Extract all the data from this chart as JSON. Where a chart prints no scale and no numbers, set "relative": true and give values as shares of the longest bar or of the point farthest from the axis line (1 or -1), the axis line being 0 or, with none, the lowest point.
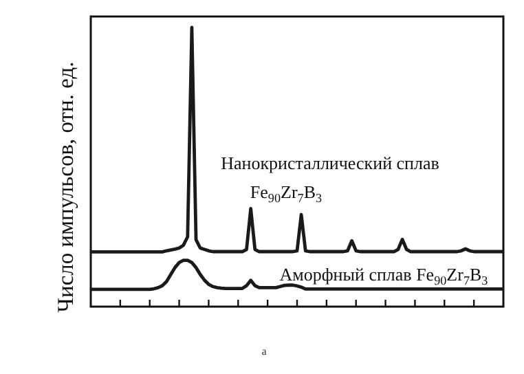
{
  "chart_data": {
    "type": "line",
    "relative": true,
    "ylabel": "Число импульсов, отн. ед.",
    "categories": [
      null,
      null,
      null,
      null,
      null,
      null,
      null,
      null,
      null,
      null,
      null,
      null,
      null,
      null,
      null,
      null,
      null,
      null,
      null,
      null,
      null,
      null,
      null,
      null,
      null,
      null,
      null,
      null,
      null,
      null,
      null,
      null,
      null,
      null,
      null,
      null,
      null,
      null,
      null,
      null,
      null,
      null,
      null,
      null,
      null,
      null,
      null,
      null,
      null,
      null,
      null,
      null,
      null,
      null,
      null,
      null,
      null,
      null,
      null,
      null,
      null,
      null,
      null,
      null,
      null,
      null,
      null,
      null,
      null,
      null,
      null,
      null,
      null,
      null,
      null,
      null,
      null,
      null,
      null,
      null,
      null,
      null,
      null,
      null,
      null,
      null,
      null,
      null,
      null,
      null,
      null,
      null,
      null,
      null,
      null,
      null,
      null,
      null,
      null
    ],
    "series": [
      {
        "name": "Нанокристаллический сплав Fe$_{90}$Zr$_{7}$B$_{3}$",
        "color": "#1a1a1a",
        "values": [
          0.196,
          0.196,
          0.196,
          0.196,
          0.196,
          0.196,
          0.196,
          0.196,
          0.196,
          0.196,
          0.196,
          0.196,
          0.196,
          0.196,
          0.196,
          0.196,
          0.196,
          0.196,
          0.2,
          0.203,
          0.206,
          0.21,
          0.22,
          0.25,
          1,
          0.24,
          0.21,
          0.205,
          0.2,
          0.197,
          0.197,
          0.197,
          0.197,
          0.197,
          0.197,
          0.197,
          0.197,
          0.205,
          0.351,
          0.205,
          0.197,
          0.197,
          0.197,
          0.197,
          0.197,
          0.197,
          0.197,
          0.197,
          0.197,
          0.2,
          0.33,
          0.2,
          0.197,
          0.197,
          0.197,
          0.197,
          0.197,
          0.197,
          0.197,
          0.197,
          0.197,
          0.2,
          0.236,
          0.2,
          0.197,
          0.197,
          0.197,
          0.197,
          0.197,
          0.197,
          0.197,
          0.197,
          0.197,
          0.205,
          0.241,
          0.205,
          0.197,
          0.197,
          0.197,
          0.197,
          0.197,
          0.197,
          0.197,
          0.197,
          0.197,
          0.197,
          0.197,
          0.197,
          0.2,
          0.207,
          0.2,
          0.197,
          0.197,
          0.197,
          0.197,
          0.197,
          0.197,
          0.197,
          0.197
        ]
      },
      {
        "name": "Аморфный сплав Fe$_{90}$Zr$_{7}$B$_{3}$",
        "color": "#1a1a1a",
        "values": [
          0.062,
          0.062,
          0.062,
          0.062,
          0.062,
          0.062,
          0.062,
          0.062,
          0.062,
          0.062,
          0.062,
          0.062,
          0.062,
          0.062,
          0.062,
          0.064,
          0.068,
          0.075,
          0.09,
          0.115,
          0.14,
          0.158,
          0.166,
          0.166,
          0.158,
          0.14,
          0.115,
          0.095,
          0.08,
          0.072,
          0.068,
          0.066,
          0.065,
          0.065,
          0.065,
          0.065,
          0.065,
          0.075,
          0.094,
          0.075,
          0.068,
          0.068,
          0.068,
          0.068,
          0.068,
          0.072,
          0.076,
          0.077,
          0.077,
          0.074,
          0.07,
          0.063,
          0.063,
          0.063,
          0.063,
          0.063,
          0.063,
          0.063,
          0.063,
          0.063,
          0.063,
          0.063,
          0.063,
          0.063,
          0.063,
          0.063,
          0.063,
          0.063,
          0.063,
          0.063,
          0.063,
          0.063,
          0.063,
          0.063,
          0.063,
          0.063,
          0.063,
          0.063,
          0.063,
          0.063,
          0.063,
          0.063,
          0.063,
          0.063,
          0.063,
          0.063,
          0.063,
          0.063,
          0.063,
          0.063,
          0.063,
          0.063,
          0.063,
          0.063,
          0.063,
          0.063,
          0.063,
          0.063,
          0.063
        ]
      }
    ],
    "annotations": [
      "а"
    ],
    "line_style": "solid",
    "marker": "none"
  }
}
